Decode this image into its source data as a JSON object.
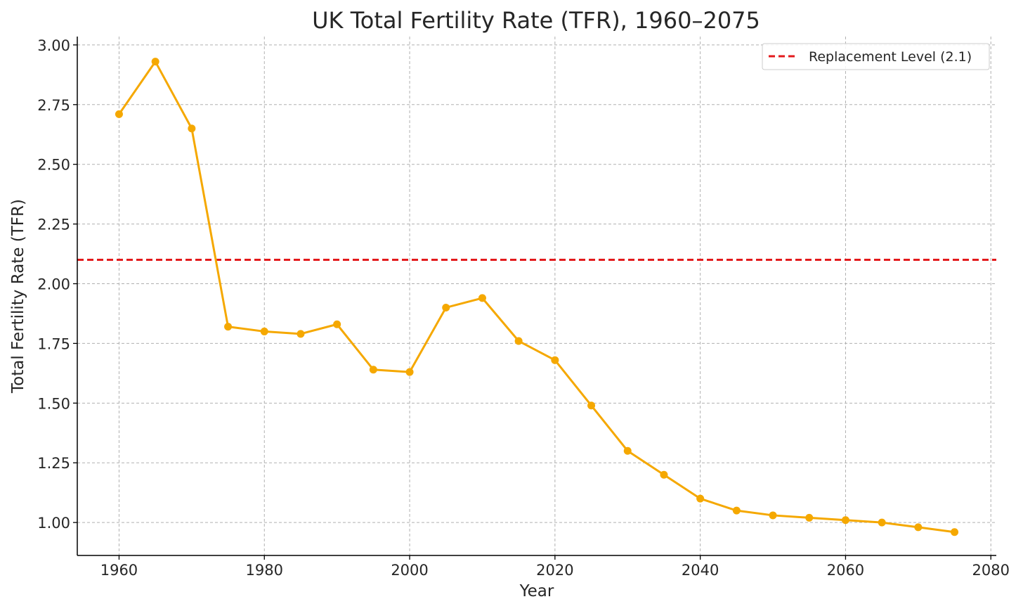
{
  "chart_data": {
    "type": "line",
    "title": "UK Total Fertility Rate (TFR), 1960–2075",
    "xlabel": "Year",
    "ylabel": "Total Fertility Rate (TFR)",
    "xlim": [
      1954.25,
      2080.75
    ],
    "ylim": [
      0.862,
      3.035
    ],
    "x_ticks": [
      1960,
      1980,
      2000,
      2020,
      2040,
      2060,
      2080
    ],
    "y_ticks": [
      1.0,
      1.25,
      1.5,
      1.75,
      2.0,
      2.25,
      2.5,
      2.75,
      3.0
    ],
    "y_tick_labels": [
      "1.00",
      "1.25",
      "1.50",
      "1.75",
      "2.00",
      "2.25",
      "2.50",
      "2.75",
      "3.00"
    ],
    "grid": true,
    "legend_position": "top-right",
    "series": [
      {
        "color": "#f5a800",
        "marker": "circle",
        "x": [
          1960,
          1965,
          1970,
          1975,
          1980,
          1985,
          1990,
          1995,
          2000,
          2005,
          2010,
          2015,
          2020,
          2025,
          2030,
          2035,
          2040,
          2045,
          2050,
          2055,
          2060,
          2065,
          2070,
          2075
        ],
        "values": [
          2.71,
          2.93,
          2.65,
          1.82,
          1.8,
          1.79,
          1.83,
          1.64,
          1.63,
          1.9,
          1.94,
          1.76,
          1.68,
          1.49,
          1.3,
          1.2,
          1.1,
          1.05,
          1.03,
          1.02,
          1.01,
          1.0,
          0.98,
          0.96
        ]
      }
    ],
    "reference_lines": [
      {
        "name": "Replacement Level (2.1)",
        "y": 2.1,
        "color": "#e31a1c",
        "style": "dashed"
      }
    ]
  }
}
